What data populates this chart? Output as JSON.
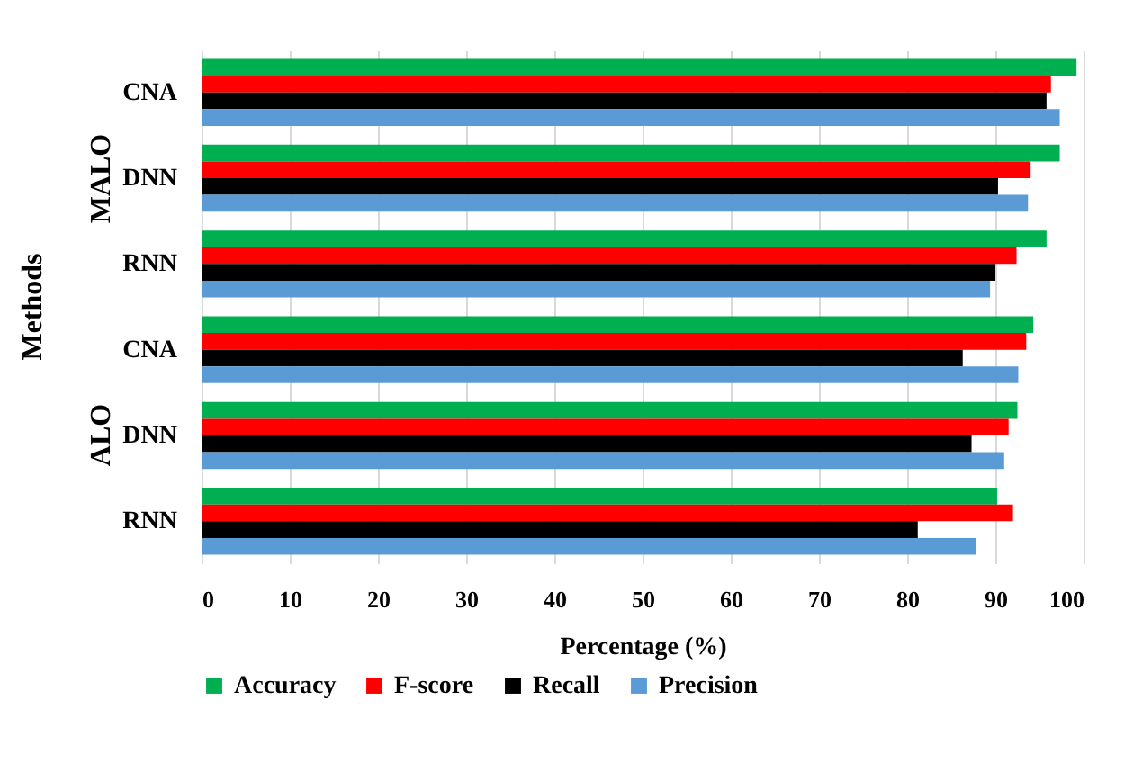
{
  "chart_data": {
    "type": "bar",
    "orientation": "horizontal",
    "xlabel": "Percentage (%)",
    "ylabel": "Methods",
    "categories": [
      "CNA",
      "DNN",
      "RNN",
      "CNA",
      "DNN",
      "RNN"
    ],
    "annotations": [
      "MALO",
      "ALO"
    ],
    "series": [
      {
        "name": "Accuracy",
        "color": "#00b050",
        "values": [
          99.2,
          97.3,
          95.8,
          94.3,
          92.5,
          90.2
        ]
      },
      {
        "name": "F-score",
        "color": "#ff0000",
        "values": [
          96.3,
          94.0,
          92.4,
          93.5,
          91.5,
          92.0
        ]
      },
      {
        "name": "Recall",
        "color": "#000000",
        "values": [
          95.8,
          90.3,
          90.0,
          86.3,
          87.3,
          81.2
        ]
      },
      {
        "name": "Precision",
        "color": "#5b9bd5",
        "values": [
          97.3,
          93.7,
          89.4,
          92.6,
          91.0,
          87.8
        ]
      }
    ],
    "xlim": [
      0,
      100
    ],
    "xticks": [
      0,
      10,
      20,
      30,
      40,
      50,
      60,
      70,
      80,
      90,
      100
    ],
    "grid": "x",
    "legend": "bottom"
  }
}
